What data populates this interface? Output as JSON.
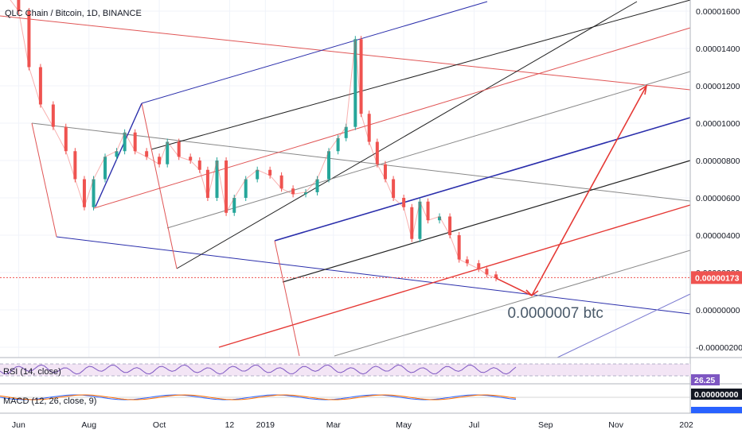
{
  "chart_data": {
    "type": "line",
    "title": "QLC Chain / Bitcoin, 1D, BINANCE",
    "x_ticks": [
      "Jun",
      "Aug",
      "Oct",
      "12",
      "2019",
      "Mar",
      "May",
      "Jul",
      "Sep",
      "Nov",
      "202"
    ],
    "y_ticks": [
      "0.00001600",
      "0.00001400",
      "0.00001200",
      "0.00001000",
      "0.00000800",
      "0.00000600",
      "0.00000400",
      "0.00000200",
      "0.00000000",
      "-0.00000200"
    ],
    "y_ticks_numeric": [
      1.6e-05,
      1.4e-05,
      1.2e-05,
      1e-05,
      8e-06,
      6e-06,
      4e-06,
      2e-06,
      0.0,
      -2e-06
    ],
    "ylim": [
      -2.3e-06,
      1.67e-05
    ],
    "last_price_label": "0.00000173",
    "last_price": 1.73e-06,
    "grid": true,
    "series": [
      {
        "name": "QLC Chain / Bitcoin",
        "color": "#ef5350",
        "x": [
          "2018-05-20",
          "2018-06-01",
          "2018-06-10",
          "2018-06-20",
          "2018-07-01",
          "2018-07-12",
          "2018-07-20",
          "2018-07-28",
          "2018-08-05",
          "2018-08-15",
          "2018-08-25",
          "2018-09-01",
          "2018-09-10",
          "2018-09-20",
          "2018-10-01",
          "2018-10-08",
          "2018-10-18",
          "2018-10-28",
          "2018-11-05",
          "2018-11-12",
          "2018-11-20",
          "2018-11-28",
          "2018-12-05",
          "2018-12-15",
          "2018-12-25",
          "2019-01-05",
          "2019-01-15",
          "2019-01-25",
          "2019-02-05",
          "2019-02-15",
          "2019-02-25",
          "2019-03-05",
          "2019-03-12",
          "2019-03-20",
          "2019-03-25",
          "2019-04-01",
          "2019-04-08",
          "2019-04-15",
          "2019-04-22",
          "2019-05-01",
          "2019-05-08",
          "2019-05-15",
          "2019-05-22",
          "2019-06-01",
          "2019-06-10",
          "2019-06-18",
          "2019-06-25",
          "2019-07-05",
          "2019-07-12",
          "2019-07-20"
        ],
        "values": [
          1.7e-05,
          1.6e-05,
          1.3e-05,
          1.1e-05,
          9.8e-06,
          8.5e-06,
          7e-06,
          5.5e-06,
          7e-06,
          8.2e-06,
          8.5e-06,
          9.5e-06,
          8.5e-06,
          8.2e-06,
          7.8e-06,
          9e-06,
          8.2e-06,
          8e-06,
          7.5e-06,
          6e-06,
          8e-06,
          5.2e-06,
          6e-06,
          7e-06,
          7.5e-06,
          7.2e-06,
          6.5e-06,
          6.2e-06,
          6.3e-06,
          7e-06,
          8.5e-06,
          9.2e-06,
          9.8e-06,
          1.45e-05,
          1.05e-05,
          9e-06,
          7.8e-06,
          7e-06,
          6e-06,
          5.5e-06,
          3.8e-06,
          5.8e-06,
          4.8e-06,
          5e-06,
          4e-06,
          2.7e-06,
          2.5e-06,
          2.2e-06,
          1.9e-06,
          1.7e-06
        ]
      }
    ],
    "annotations": [
      {
        "text": "0.0000007 btc",
        "x": "2019-08-20",
        "y": -1e-07
      }
    ],
    "indicators": {
      "rsi": {
        "label": "RSI (14, close)",
        "value_label": "26.25",
        "value": 26.25
      },
      "macd": {
        "label": "MACD (12, 26, close, 9)",
        "value_label": "0.00000000"
      }
    }
  },
  "colors": {
    "candle_down": "#ef5350",
    "candle_up": "#26a69a",
    "navy": "#2a2eab",
    "red": "#e53935",
    "black": "#222222",
    "grey": "#8a8a8a",
    "rsi_band": "#f3e5f5",
    "price_tag": "#ef5350"
  }
}
